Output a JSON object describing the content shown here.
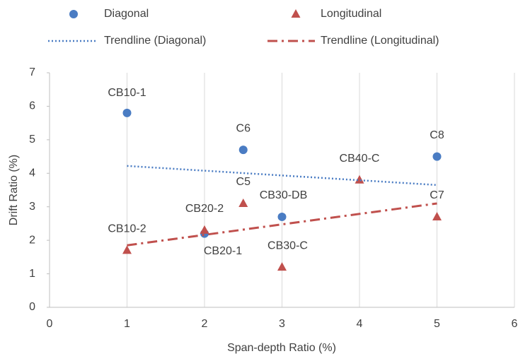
{
  "chart_data": {
    "type": "scatter",
    "x_label": "Span-depth Ratio (%)",
    "y_label": "Drift Ratio (%)",
    "xlim": [
      0,
      6
    ],
    "xticks": [
      0,
      1,
      2,
      3,
      4,
      5,
      6
    ],
    "ylim": [
      0,
      7
    ],
    "yticks": [
      0,
      1,
      2,
      3,
      4,
      5,
      6,
      7
    ],
    "grid": "x",
    "series": [
      {
        "name": "Diagonal",
        "color": "#4a7cc3",
        "marker": "circle",
        "x": [
          1,
          2.5,
          3,
          5,
          2
        ],
        "values": [
          5.8,
          4.7,
          2.7,
          4.5,
          2.2
        ],
        "labels": [
          "CB10-1",
          "C6",
          "CB30-DB",
          "C8",
          "CB20-1"
        ]
      },
      {
        "name": "Longitudinal",
        "color": "#c0504d",
        "marker": "triangle",
        "x": [
          1,
          2,
          2.5,
          3,
          4,
          5
        ],
        "values": [
          1.7,
          2.3,
          3.1,
          1.2,
          3.8,
          2.7
        ],
        "labels": [
          "CB10-2",
          "CB20-2",
          "C5",
          "CB30-C",
          "CB40-C",
          "C7"
        ]
      },
      {
        "name": "Trendline (Diagonal)",
        "color": "#4a7cc3",
        "line": "dotted",
        "x": [
          1,
          5
        ],
        "values": [
          4.22,
          3.65
        ]
      },
      {
        "name": "Trendline (Longitudinal)",
        "color": "#c0504d",
        "line": "dashdot",
        "x": [
          1,
          5
        ],
        "values": [
          1.85,
          3.1
        ]
      }
    ]
  }
}
